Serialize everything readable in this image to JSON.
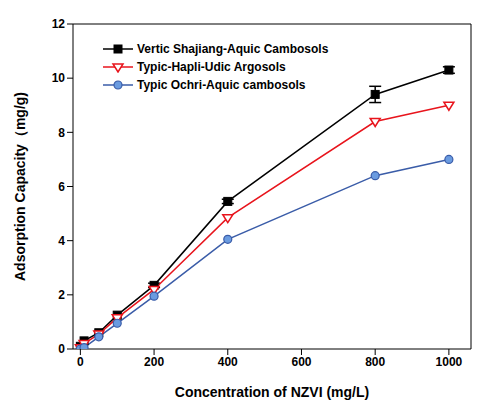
{
  "chart_data": {
    "type": "line",
    "xlabel": "Concentration of NZVI (mg/L)",
    "ylabel": "Adsorption Capacity（mg/g)",
    "x": [
      0,
      10,
      50,
      100,
      200,
      400,
      800,
      1000
    ],
    "xlim": [
      -20,
      1060
    ],
    "xticks": [
      0,
      200,
      400,
      600,
      800,
      1000
    ],
    "ylim": [
      0,
      12
    ],
    "yticks": [
      0,
      2,
      4,
      6,
      8,
      10,
      12
    ],
    "legend": "upper left",
    "series": [
      {
        "name": "Vertic Shajiang-Aquic Cambosols",
        "color": "#000000",
        "marker": "square",
        "values": [
          0.1,
          0.3,
          0.6,
          1.25,
          2.35,
          5.45,
          9.4,
          10.3
        ],
        "errors": [
          0,
          0,
          0,
          0,
          0.08,
          0.08,
          0.3,
          0.12
        ]
      },
      {
        "name": "Typic-Hapli-Udic Argosols",
        "color": "#e8141c",
        "marker": "triangle-down",
        "values": [
          0.05,
          0.2,
          0.55,
          1.15,
          2.2,
          4.85,
          8.4,
          9.0
        ]
      },
      {
        "name": "Typic Ochri-Aquic cambosols",
        "color": "#3a5ca8",
        "marker": "circle",
        "values": [
          0,
          0.05,
          0.45,
          0.95,
          1.95,
          4.05,
          6.4,
          7.0
        ]
      }
    ]
  }
}
